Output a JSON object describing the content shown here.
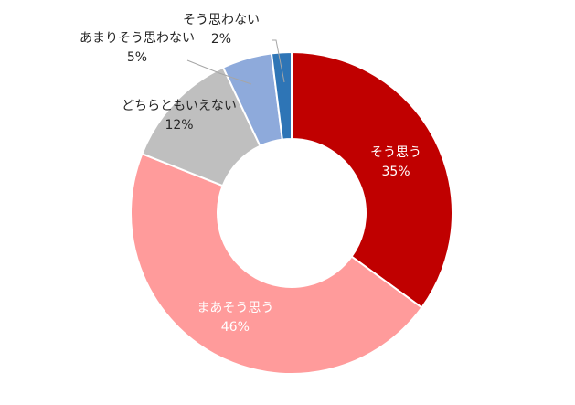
{
  "chart_data": {
    "type": "pie",
    "donut": true,
    "title": "",
    "legend": "none",
    "categories": [
      "そう思う",
      "まあそう思う",
      "どちらともいえない",
      "あまりそう思わない",
      "そう思わない"
    ],
    "values": [
      35,
      46,
      12,
      5,
      2
    ],
    "value_labels": [
      "35%",
      "46%",
      "12%",
      "5%",
      "2%"
    ],
    "colors": [
      "#c00000",
      "#ff9b9b",
      "#bfbfbf",
      "#8eaadb",
      "#2e75b6"
    ],
    "label_colors": [
      "#ffffff",
      "#ffffff",
      "#262626",
      "#262626",
      "#262626"
    ]
  }
}
